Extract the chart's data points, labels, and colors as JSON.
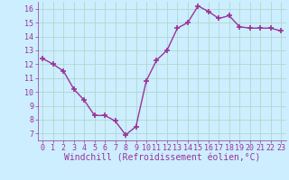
{
  "x": [
    0,
    1,
    2,
    3,
    4,
    5,
    6,
    7,
    8,
    9,
    10,
    11,
    12,
    13,
    14,
    15,
    16,
    17,
    18,
    19,
    20,
    21,
    22,
    23
  ],
  "y": [
    12.4,
    12.0,
    11.5,
    10.2,
    9.4,
    8.3,
    8.3,
    7.9,
    6.9,
    7.5,
    10.8,
    12.3,
    13.0,
    14.6,
    15.0,
    16.2,
    15.8,
    15.3,
    15.5,
    14.7,
    14.6,
    14.6,
    14.6,
    14.4
  ],
  "line_color": "#993399",
  "marker": "+",
  "marker_size": 4,
  "marker_lw": 1.2,
  "bg_color": "#cceeff",
  "grid_color": "#aaddcc",
  "xlabel": "Windchill (Refroidissement éolien,°C)",
  "ylim_min": 6.5,
  "ylim_max": 16.5,
  "xlim_min": -0.5,
  "xlim_max": 23.5,
  "yticks": [
    7,
    8,
    9,
    10,
    11,
    12,
    13,
    14,
    15,
    16
  ],
  "xticks": [
    0,
    1,
    2,
    3,
    4,
    5,
    6,
    7,
    8,
    9,
    10,
    11,
    12,
    13,
    14,
    15,
    16,
    17,
    18,
    19,
    20,
    21,
    22,
    23
  ],
  "tick_color": "#993399",
  "label_color": "#993399",
  "tick_fontsize": 6,
  "xlabel_fontsize": 7,
  "linewidth": 1.0
}
